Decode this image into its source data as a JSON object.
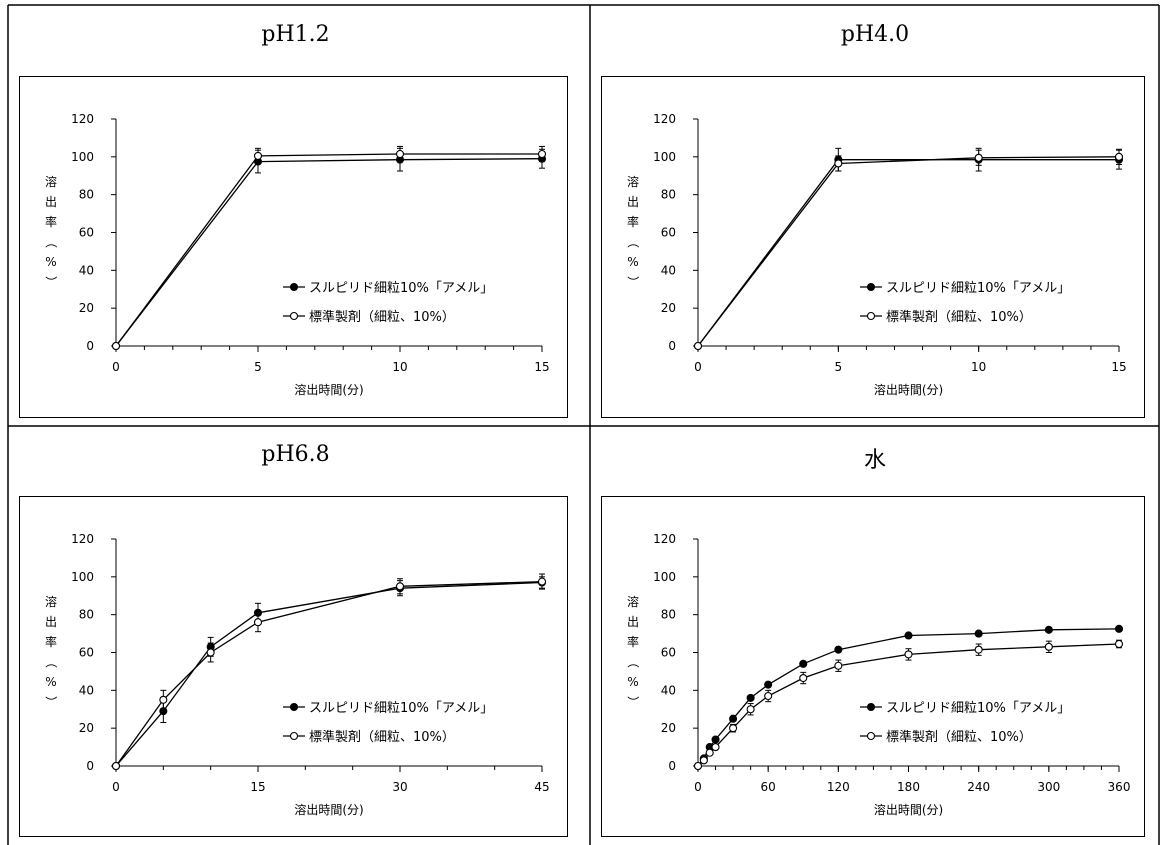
{
  "chart_data": [
    {
      "type": "line",
      "title": "pH1.2",
      "xlabel": "溶出時間(分)",
      "ylabel": "溶出率（%）",
      "xlim": [
        0,
        15
      ],
      "ylim": [
        0,
        120
      ],
      "xticks": [
        0,
        5,
        10,
        15
      ],
      "xminor": 1,
      "yticks": [
        0,
        20,
        40,
        60,
        80,
        100,
        120
      ],
      "x": [
        0,
        5,
        10,
        15
      ],
      "series": [
        {
          "name": "スルピリド細粒10%「アメル」",
          "marker": "filled",
          "values": [
            0,
            97.5,
            98.5,
            99
          ],
          "errors": [
            0,
            6,
            6,
            5
          ]
        },
        {
          "name": "標準製剤（細粒、10%）",
          "marker": "open",
          "values": [
            0,
            100.5,
            101.5,
            101.5
          ],
          "errors": [
            0,
            4,
            4,
            4
          ]
        }
      ]
    },
    {
      "type": "line",
      "title": "pH4.0",
      "xlabel": "溶出時間(分)",
      "ylabel": "溶出率（%）",
      "xlim": [
        0,
        15
      ],
      "ylim": [
        0,
        120
      ],
      "xticks": [
        0,
        5,
        10,
        15
      ],
      "xminor": 1,
      "yticks": [
        0,
        20,
        40,
        60,
        80,
        100,
        120
      ],
      "x": [
        0,
        5,
        10,
        15
      ],
      "series": [
        {
          "name": "スルピリド細粒10%「アメル」",
          "marker": "filled",
          "values": [
            0,
            98.5,
            98.5,
            98.5
          ],
          "errors": [
            0,
            6,
            6,
            5
          ]
        },
        {
          "name": "標準製剤（細粒、10%）",
          "marker": "open",
          "values": [
            0,
            96.5,
            99.5,
            100
          ],
          "errors": [
            0,
            4,
            4,
            4
          ]
        }
      ]
    },
    {
      "type": "line",
      "title": "pH6.8",
      "xlabel": "溶出時間(分)",
      "ylabel": "溶出率（%）",
      "xlim": [
        0,
        45
      ],
      "ylim": [
        0,
        120
      ],
      "xticks": [
        0,
        15,
        30,
        45
      ],
      "xminor": 5,
      "yticks": [
        0,
        20,
        40,
        60,
        80,
        100,
        120
      ],
      "x": [
        0,
        5,
        10,
        15,
        30,
        45
      ],
      "series": [
        {
          "name": "スルピリド細粒10%「アメル」",
          "marker": "filled",
          "values": [
            0,
            29,
            63,
            81,
            94,
            97
          ],
          "errors": [
            0,
            6,
            5,
            5,
            4,
            3
          ]
        },
        {
          "name": "標準製剤（細粒、10%）",
          "marker": "open",
          "values": [
            0,
            35,
            60,
            76,
            95,
            97.5
          ],
          "errors": [
            0,
            5,
            5,
            5,
            4,
            4
          ]
        }
      ]
    },
    {
      "type": "line",
      "title": "水",
      "xlabel": "溶出時間(分)",
      "ylabel": "溶出率（%）",
      "xlim": [
        0,
        360
      ],
      "ylim": [
        0,
        120
      ],
      "xticks": [
        0,
        60,
        120,
        180,
        240,
        300,
        360
      ],
      "xminor": 15,
      "yticks": [
        0,
        20,
        40,
        60,
        80,
        100,
        120
      ],
      "x": [
        0,
        5,
        10,
        15,
        30,
        45,
        60,
        90,
        120,
        180,
        240,
        300,
        360
      ],
      "series": [
        {
          "name": "スルピリド細粒10%「アメル」",
          "marker": "filled",
          "values": [
            0,
            4,
            10,
            14,
            25,
            36,
            43,
            54,
            61.5,
            69,
            70,
            72,
            72.5
          ],
          "errors": [
            0,
            0,
            0,
            0,
            0,
            0,
            0,
            0,
            0,
            0,
            0,
            0,
            0
          ]
        },
        {
          "name": "標準製剤（細粒、10%）",
          "marker": "open",
          "values": [
            0,
            3,
            7,
            10,
            20,
            30,
            37,
            46.5,
            53,
            59,
            61.5,
            63,
            64.5
          ],
          "errors": [
            0,
            0,
            0,
            0,
            2,
            3,
            3,
            3,
            3,
            3,
            3,
            3,
            2
          ]
        }
      ]
    }
  ]
}
